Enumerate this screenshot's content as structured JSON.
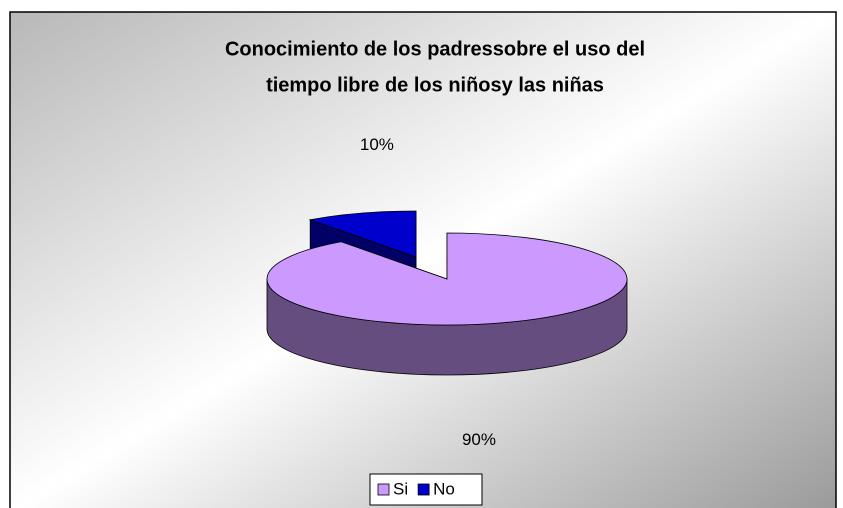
{
  "chart_data": {
    "type": "pie3d",
    "title": [
      "Conocimiento de los padressobre el uso del",
      "tiempo libre de los niñosy las niñas"
    ],
    "categories": [
      "Si",
      "No"
    ],
    "values": [
      90,
      10
    ],
    "value_labels": [
      "90%",
      "10%"
    ],
    "colors": [
      "#cc99ff",
      "#0000cc"
    ],
    "legend": "bottom"
  }
}
